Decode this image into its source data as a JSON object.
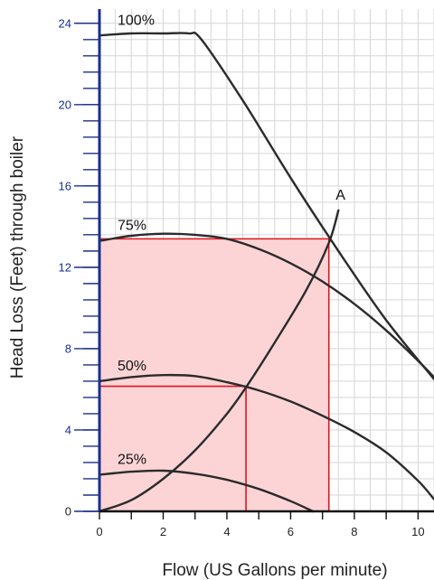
{
  "chart_data": {
    "type": "line",
    "xlabel": "Flow (US Gallons per minute)",
    "ylabel": "Head Loss (Feet) through boiler",
    "xlim": [
      0,
      10.5
    ],
    "ylim": [
      0,
      24.7
    ],
    "grid": true,
    "x_ticks": [
      0,
      2,
      4,
      6,
      8,
      10
    ],
    "y_ticks": [
      0,
      4,
      8,
      12,
      16,
      20,
      24
    ],
    "colors": {
      "curve": "#2b2b2b",
      "grid": "#d6d6d6",
      "y_axis": "#1a2f8f",
      "y_tick_label": "#1a2f8f",
      "highlight_line": "#e0141c",
      "highlight_fill": "#fcd4d6"
    },
    "series": [
      {
        "name": "100%",
        "x": [
          0,
          1,
          2,
          2.8,
          3.2,
          4.5,
          6,
          7.5,
          9,
          10.5
        ],
        "y": [
          23.4,
          23.5,
          23.5,
          23.5,
          23.2,
          20.2,
          16.4,
          12.8,
          9.4,
          6.5
        ]
      },
      {
        "name": "75%",
        "x": [
          0,
          1,
          2,
          3,
          4,
          5,
          6,
          7,
          8,
          9,
          10,
          10.5
        ],
        "y": [
          13.3,
          13.55,
          13.65,
          13.6,
          13.4,
          12.9,
          12.2,
          11.3,
          10.2,
          8.9,
          7.4,
          6.6
        ]
      },
      {
        "name": "50%",
        "x": [
          0,
          1,
          2,
          3,
          4,
          5,
          6,
          7,
          8,
          9,
          10,
          10.5
        ],
        "y": [
          6.4,
          6.6,
          6.7,
          6.65,
          6.35,
          5.95,
          5.4,
          4.7,
          3.9,
          2.9,
          1.5,
          0.6
        ]
      },
      {
        "name": "25%",
        "x": [
          0,
          1,
          2,
          3,
          4,
          5,
          6,
          6.7
        ],
        "y": [
          1.8,
          1.95,
          2.0,
          1.85,
          1.55,
          1.1,
          0.5,
          0
        ]
      },
      {
        "name": "A",
        "x": [
          0,
          1,
          2,
          3,
          4,
          4.6,
          5.5,
          6.5,
          7.2,
          7.5
        ],
        "y": [
          0,
          0.55,
          1.6,
          3.0,
          4.8,
          6.1,
          8.3,
          10.9,
          13.2,
          14.8
        ]
      }
    ],
    "highlight": {
      "outer": {
        "x": 7.2,
        "y": 13.4
      },
      "inner": {
        "x": 4.6,
        "y": 6.15
      }
    }
  }
}
